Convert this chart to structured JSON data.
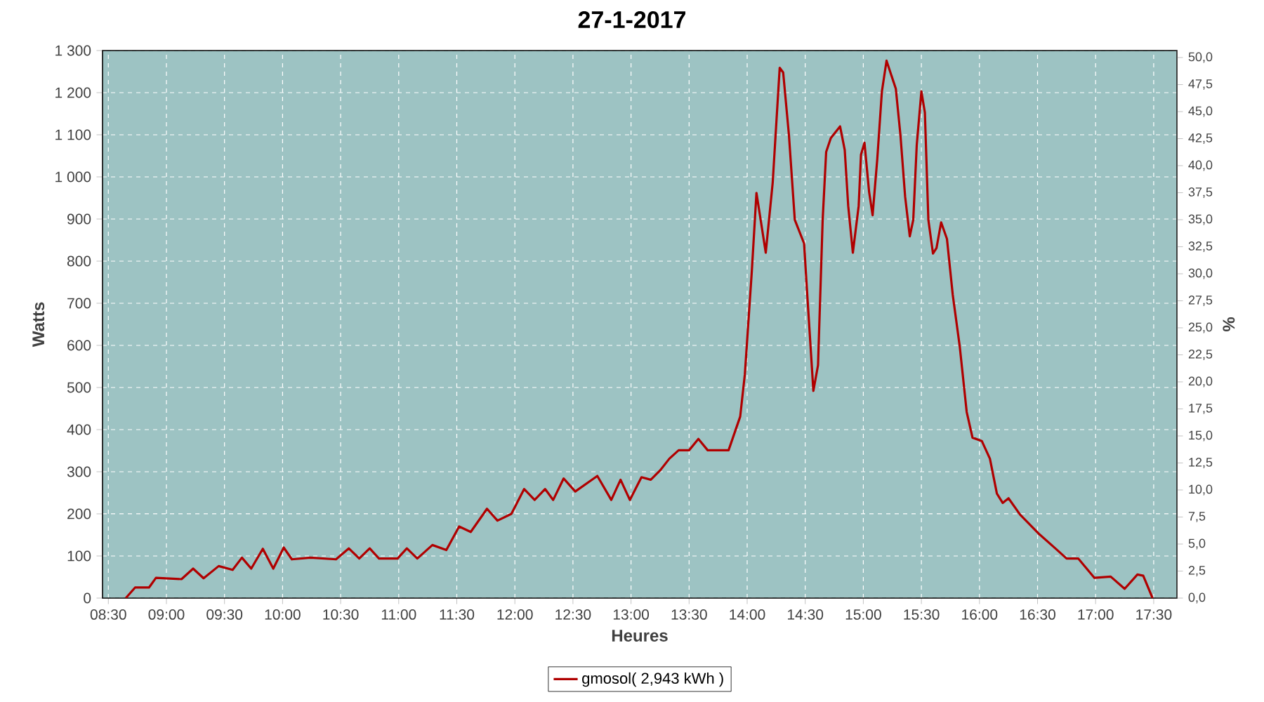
{
  "chart_data": {
    "type": "line",
    "title": "27-1-2017",
    "xlabel": "Heures",
    "ylabel": "Watts",
    "y2label": "%",
    "xlim": [
      8.45,
      17.7
    ],
    "ylim": [
      0,
      1300
    ],
    "y2lim": [
      0,
      50.65
    ],
    "xticks": [
      {
        "value": 8.5,
        "label": "08:30"
      },
      {
        "value": 9,
        "label": "09:00"
      },
      {
        "value": 9.5,
        "label": "09:30"
      },
      {
        "value": 10,
        "label": "10:00"
      },
      {
        "value": 10.5,
        "label": "10:30"
      },
      {
        "value": 11,
        "label": "11:00"
      },
      {
        "value": 11.5,
        "label": "11:30"
      },
      {
        "value": 12,
        "label": "12:00"
      },
      {
        "value": 12.5,
        "label": "12:30"
      },
      {
        "value": 13,
        "label": "13:00"
      },
      {
        "value": 13.5,
        "label": "13:30"
      },
      {
        "value": 14,
        "label": "14:00"
      },
      {
        "value": 14.5,
        "label": "14:30"
      },
      {
        "value": 15,
        "label": "15:00"
      },
      {
        "value": 15.5,
        "label": "15:30"
      },
      {
        "value": 16,
        "label": "16:00"
      },
      {
        "value": 16.5,
        "label": "16:30"
      },
      {
        "value": 17,
        "label": "17:00"
      },
      {
        "value": 17.5,
        "label": "17:30"
      }
    ],
    "yticks": [
      0,
      100,
      200,
      300,
      400,
      500,
      600,
      700,
      800,
      900,
      {
        "value": 1000,
        "label": "1 000"
      },
      {
        "value": 1100,
        "label": "1 100"
      },
      {
        "value": 1200,
        "label": "1 200"
      },
      {
        "value": 1300,
        "label": "1 300"
      }
    ],
    "y2ticks": [
      {
        "value": 0,
        "label": "0,0"
      },
      {
        "value": 2.5,
        "label": "2,5"
      },
      {
        "value": 5,
        "label": "5,0"
      },
      {
        "value": 7.5,
        "label": "7,5"
      },
      {
        "value": 10,
        "label": "10,0"
      },
      {
        "value": 12.5,
        "label": "12,5"
      },
      {
        "value": 15,
        "label": "15,0"
      },
      {
        "value": 17.5,
        "label": "17,5"
      },
      {
        "value": 20,
        "label": "20,0"
      },
      {
        "value": 22.5,
        "label": "22,5"
      },
      {
        "value": 25,
        "label": "25,0"
      },
      {
        "value": 27.5,
        "label": "27,5"
      },
      {
        "value": 30,
        "label": "30,0"
      },
      {
        "value": 32.5,
        "label": "32,5"
      },
      {
        "value": 35,
        "label": "35,0"
      },
      {
        "value": 37.5,
        "label": "37,5"
      },
      {
        "value": 40,
        "label": "40,0"
      },
      {
        "value": 42.5,
        "label": "42,5"
      },
      {
        "value": 45,
        "label": "45,0"
      },
      {
        "value": 47.5,
        "label": "47,5"
      },
      {
        "value": 50,
        "label": "50,0"
      }
    ],
    "grid": true,
    "legend": "bottom",
    "line_style": "solid",
    "series": [
      {
        "name": "gmosol( 2,943 kWh )",
        "color": "#b00000",
        "x": [
          8.65,
          8.73,
          8.85,
          8.91,
          9.13,
          9.23,
          9.32,
          9.45,
          9.57,
          9.65,
          9.73,
          9.83,
          9.92,
          10.01,
          10.08,
          10.24,
          10.46,
          10.57,
          10.66,
          10.75,
          10.83,
          10.99,
          11.07,
          11.16,
          11.29,
          11.41,
          11.52,
          11.62,
          11.76,
          11.85,
          11.97,
          12.08,
          12.17,
          12.26,
          12.33,
          12.42,
          12.52,
          12.71,
          12.83,
          12.91,
          12.99,
          13.09,
          13.17,
          13.25,
          13.33,
          13.41,
          13.5,
          13.58,
          13.66,
          13.84,
          13.94,
          13.98,
          14.04,
          14.08,
          14.16,
          14.22,
          14.28,
          14.31,
          14.36,
          14.41,
          14.49,
          14.52,
          14.57,
          14.61,
          14.65,
          14.68,
          14.72,
          14.8,
          14.84,
          14.87,
          14.91,
          14.96,
          14.98,
          15.01,
          15.05,
          15.08,
          15.12,
          15.16,
          15.2,
          15.28,
          15.32,
          15.36,
          15.4,
          15.43,
          15.46,
          15.5,
          15.53,
          15.56,
          15.6,
          15.63,
          15.67,
          15.72,
          15.77,
          15.83,
          15.89,
          15.94,
          16.02,
          16.09,
          16.15,
          16.2,
          16.25,
          16.35,
          16.51,
          16.67,
          16.75,
          16.85,
          16.99,
          17.13,
          17.25,
          17.36,
          17.41,
          17.49
        ],
        "values": [
          0,
          25,
          25,
          48,
          45,
          70,
          47,
          76,
          67,
          96,
          70,
          117,
          70,
          120,
          92,
          96,
          92,
          118,
          94,
          118,
          94,
          94,
          118,
          94,
          126,
          114,
          170,
          157,
          212,
          184,
          200,
          259,
          233,
          259,
          233,
          284,
          253,
          290,
          233,
          281,
          233,
          287,
          281,
          303,
          331,
          351,
          351,
          378,
          351,
          351,
          431,
          531,
          776,
          962,
          820,
          987,
          1259,
          1248,
          1098,
          898,
          842,
          709,
          492,
          553,
          898,
          1059,
          1092,
          1120,
          1064,
          931,
          820,
          931,
          1053,
          1081,
          964,
          909,
          1042,
          1203,
          1276,
          1209,
          1098,
          953,
          859,
          898,
          1076,
          1203,
          1153,
          898,
          818,
          831,
          892,
          853,
          720,
          598,
          442,
          381,
          373,
          331,
          248,
          226,
          237,
          198,
          153,
          114,
          94,
          94,
          48,
          51,
          22,
          56,
          53,
          0
        ]
      }
    ]
  }
}
